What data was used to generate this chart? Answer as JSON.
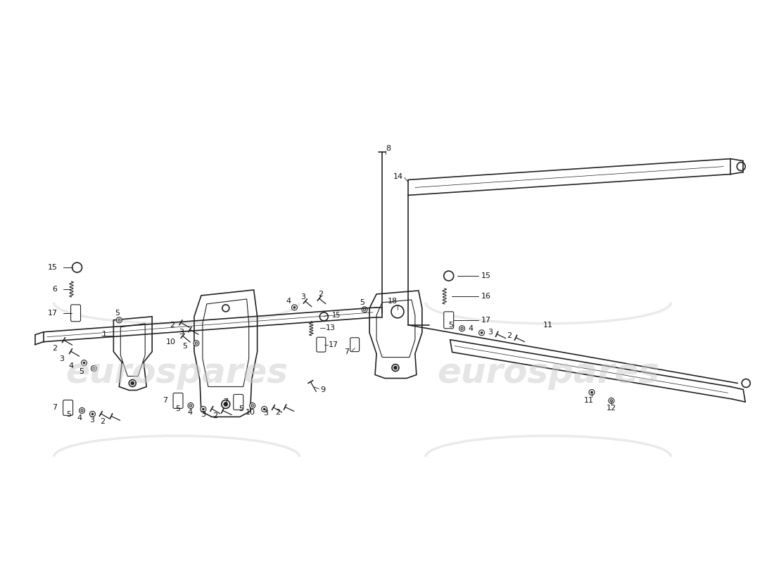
{
  "bg_color": "#ffffff",
  "line_color": "#222222",
  "wm_color": "#cccccc",
  "wm_text": "eurospares",
  "fig_width": 11.0,
  "fig_height": 8.0,
  "dpi": 100
}
